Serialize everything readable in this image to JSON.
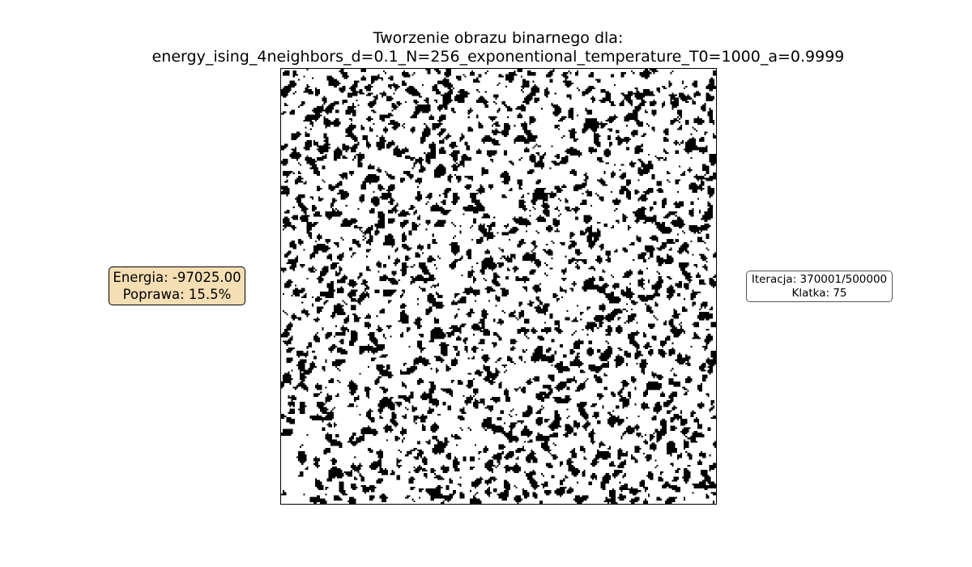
{
  "title": {
    "line1": "Tworzenie obrazu binarnego dla:",
    "line2": "energy_ising_4neighbors_d=0.1_N=256_exponentional_temperature_T0=1000_a=0.9999"
  },
  "energy_box": {
    "energy_text": "Energia: -97025.00",
    "improvement_text": "Poprawa: 15.5%",
    "background": "#f5deb3"
  },
  "iteration_box": {
    "iteration_text": "Iteracja: 370001/500000",
    "frame_text": "Klatka: 75"
  },
  "chart_data": {
    "type": "heatmap",
    "grid_size": 256,
    "density": 0.1,
    "colors": {
      "on": "#000000",
      "off": "#ffffff"
    },
    "axes_visible": false
  }
}
